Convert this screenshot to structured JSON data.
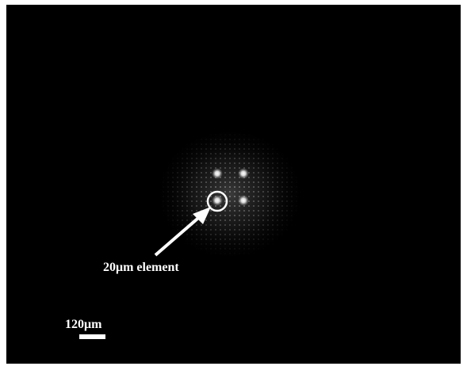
{
  "annotations": {
    "element_label": "20μm element",
    "scale_label": "120μm"
  }
}
